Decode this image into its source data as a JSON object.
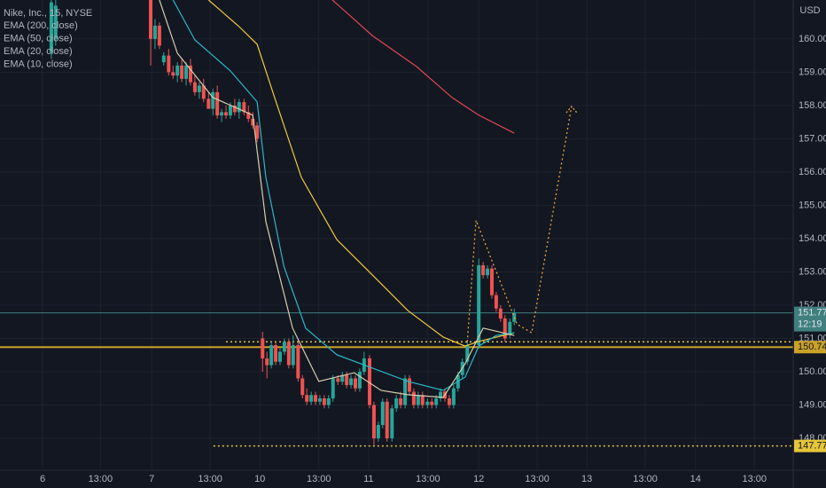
{
  "chart_data": {
    "type": "candlestick",
    "title": "Nike, Inc., 15, NYSE",
    "currency": "USD",
    "countdown": "12:19",
    "up_color": "#26a69a",
    "down_color": "#ef5350",
    "grid": true,
    "xlim": [
      -0.78,
      13.75
    ],
    "xticks": [
      {
        "value": 0,
        "label": "6"
      },
      {
        "value": 1.06,
        "label": "13:00"
      },
      {
        "value": 2.0,
        "label": "7"
      },
      {
        "value": 3.07,
        "label": "13:00"
      },
      {
        "value": 3.98,
        "label": "10"
      },
      {
        "value": 5.06,
        "label": "13:00"
      },
      {
        "value": 5.97,
        "label": "11"
      },
      {
        "value": 7.06,
        "label": "13:00"
      },
      {
        "value": 7.99,
        "label": "12"
      },
      {
        "value": 9.06,
        "label": "13:00"
      },
      {
        "value": 9.97,
        "label": "13"
      },
      {
        "value": 11.04,
        "label": "13:00"
      },
      {
        "value": 11.96,
        "label": "14"
      },
      {
        "value": 13.04,
        "label": "13:00"
      }
    ],
    "ylim": [
      147.04,
      161.17
    ],
    "yticks": [
      {
        "value": 148,
        "label": "148.00"
      },
      {
        "value": 149,
        "label": "149.00"
      },
      {
        "value": 150,
        "label": "150.00"
      },
      {
        "value": 151,
        "label": "151.00"
      },
      {
        "value": 152,
        "label": "152.00"
      },
      {
        "value": 153,
        "label": "153.00"
      },
      {
        "value": 154,
        "label": "154.00"
      },
      {
        "value": 155,
        "label": "155.00"
      },
      {
        "value": 156,
        "label": "156.00"
      },
      {
        "value": 157,
        "label": "157.00"
      },
      {
        "value": 158,
        "label": "158.00"
      },
      {
        "value": 159,
        "label": "159.00"
      },
      {
        "value": 160,
        "label": "160.00"
      }
    ],
    "candles": {
      "x": [
        0.16,
        0.24,
        1.98,
        2.06,
        2.14,
        2.22,
        2.31,
        2.39,
        2.47,
        2.55,
        2.63,
        2.71,
        2.79,
        2.87,
        2.95,
        3.04,
        3.12,
        3.2,
        3.28,
        3.36,
        3.44,
        3.52,
        3.6,
        3.69,
        3.77,
        3.85,
        3.93,
        4.03,
        4.11,
        4.19,
        4.27,
        4.35,
        4.43,
        4.51,
        4.59,
        4.68,
        4.76,
        4.84,
        4.92,
        5.0,
        5.08,
        5.16,
        5.24,
        5.32,
        5.41,
        5.49,
        5.57,
        5.65,
        5.73,
        5.81,
        5.89,
        5.99,
        6.07,
        6.15,
        6.23,
        6.31,
        6.4,
        6.48,
        6.56,
        6.64,
        6.72,
        6.8,
        6.88,
        6.96,
        7.05,
        7.13,
        7.21,
        7.29,
        7.37,
        7.45,
        7.53,
        7.61,
        7.69,
        7.78,
        7.99,
        8.07,
        8.15,
        8.23,
        8.31,
        8.39,
        8.47,
        8.56,
        8.64
      ],
      "open": [
        159.6,
        160.0,
        161.2,
        160.0,
        160.4,
        159.3,
        159.5,
        159.0,
        158.9,
        159.2,
        158.8,
        159.2,
        158.7,
        158.4,
        158.6,
        158.2,
        157.9,
        158.4,
        157.7,
        157.8,
        157.7,
        158.0,
        157.8,
        158.1,
        157.8,
        157.6,
        157.4,
        151.0,
        150.4,
        150.2,
        150.8,
        150.3,
        150.6,
        150.9,
        150.2,
        150.8,
        149.8,
        149.3,
        149.1,
        149.3,
        149.1,
        149.2,
        149.0,
        149.2,
        149.8,
        149.7,
        149.9,
        149.6,
        149.8,
        149.5,
        150.0,
        150.4,
        149.0,
        148.0,
        148.4,
        149.1,
        148.0,
        148.9,
        149.2,
        149.0,
        149.8,
        149.4,
        149.0,
        149.3,
        149.0,
        149.1,
        149.0,
        149.2,
        149.4,
        149.2,
        149.0,
        149.5,
        149.9,
        150.3,
        150.8,
        153.2,
        152.9,
        153.1,
        152.3,
        151.9,
        151.6,
        151.1,
        151.5
      ],
      "high": [
        161.2,
        161.2,
        161.2,
        160.6,
        160.5,
        159.6,
        159.7,
        159.2,
        159.3,
        159.4,
        159.3,
        159.4,
        158.9,
        158.7,
        158.8,
        158.4,
        158.5,
        158.6,
        157.9,
        158.0,
        158.1,
        158.2,
        158.2,
        158.2,
        158.0,
        157.8,
        157.5,
        151.2,
        150.6,
        150.9,
        150.9,
        150.7,
        151.0,
        151.0,
        151.1,
        150.9,
        149.9,
        149.5,
        149.4,
        149.4,
        149.3,
        149.3,
        149.3,
        149.9,
        149.9,
        150.0,
        150.0,
        149.9,
        149.9,
        150.1,
        150.6,
        150.5,
        149.1,
        148.5,
        149.2,
        149.2,
        149.0,
        149.3,
        149.4,
        149.9,
        149.9,
        149.5,
        149.4,
        149.4,
        149.2,
        149.2,
        149.3,
        149.5,
        149.5,
        149.3,
        149.6,
        150.0,
        150.4,
        150.9,
        153.4,
        153.3,
        153.2,
        153.2,
        152.4,
        152.0,
        151.7,
        151.6,
        151.9
      ],
      "low": [
        159.4,
        159.8,
        159.2,
        159.7,
        159.7,
        159.2,
        158.9,
        158.8,
        158.7,
        158.7,
        158.6,
        158.6,
        158.3,
        158.2,
        158.1,
        158.0,
        157.7,
        157.6,
        157.5,
        157.6,
        157.6,
        157.7,
        157.6,
        157.7,
        157.5,
        157.3,
        156.9,
        150.0,
        149.8,
        150.1,
        150.2,
        150.2,
        150.5,
        150.1,
        150.1,
        149.7,
        149.2,
        149.0,
        149.0,
        149.0,
        149.0,
        148.9,
        148.9,
        149.1,
        149.6,
        149.6,
        149.5,
        149.5,
        149.4,
        149.4,
        149.9,
        148.9,
        147.8,
        147.9,
        148.3,
        147.9,
        147.9,
        148.8,
        148.9,
        148.9,
        149.3,
        148.9,
        148.9,
        148.9,
        148.9,
        148.9,
        148.9,
        149.1,
        149.1,
        148.9,
        148.9,
        149.4,
        149.8,
        150.2,
        150.7,
        152.8,
        152.8,
        152.2,
        151.8,
        151.5,
        150.9,
        151.0,
        151.4
      ],
      "close": [
        161.1,
        161.0,
        160.0,
        160.4,
        159.8,
        159.5,
        159.0,
        158.9,
        159.2,
        158.8,
        159.2,
        158.7,
        158.4,
        158.6,
        158.2,
        157.9,
        158.4,
        157.7,
        157.8,
        157.7,
        158.0,
        157.8,
        158.1,
        157.8,
        157.6,
        157.4,
        157.0,
        150.4,
        150.2,
        150.8,
        150.3,
        150.6,
        150.9,
        150.2,
        150.8,
        149.8,
        149.3,
        149.1,
        149.3,
        149.1,
        149.2,
        149.0,
        149.2,
        149.8,
        149.7,
        149.9,
        149.6,
        149.8,
        149.5,
        150.0,
        150.4,
        149.0,
        148.0,
        148.4,
        149.1,
        148.0,
        148.9,
        149.2,
        149.0,
        149.8,
        149.4,
        149.0,
        149.3,
        149.0,
        149.1,
        149.0,
        149.2,
        149.4,
        149.2,
        149.0,
        149.5,
        149.9,
        150.3,
        150.8,
        153.2,
        152.9,
        153.1,
        152.3,
        151.9,
        151.6,
        151.0,
        151.5,
        151.77
      ]
    },
    "series": [
      {
        "name": "EMA (200, close)",
        "color": "#e04850",
        "x": [
          5.31,
          6.04,
          6.85,
          7.5,
          7.99,
          8.64
        ],
        "values": [
          161.17,
          160.1,
          159.17,
          158.24,
          157.71,
          157.17
        ]
      },
      {
        "name": "EMA (50, close)",
        "color": "#f0c93a",
        "x": [
          3.04,
          3.6,
          3.93,
          4.25,
          4.74,
          5.39,
          6.04,
          6.69,
          7.34,
          7.74,
          7.99,
          8.64
        ],
        "values": [
          161.17,
          160.37,
          159.84,
          158.24,
          155.84,
          153.97,
          152.91,
          151.84,
          151.04,
          150.77,
          150.91,
          151.17
        ]
      },
      {
        "name": "EMA (20, close)",
        "color": "#2ab8c8",
        "x": [
          2.39,
          2.79,
          3.44,
          3.93,
          4.09,
          4.42,
          4.82,
          5.39,
          6.04,
          6.69,
          7.34,
          7.74,
          7.99,
          8.31,
          8.64
        ],
        "values": [
          161.17,
          159.97,
          159.04,
          158.11,
          155.84,
          153.17,
          151.31,
          150.51,
          150.11,
          149.71,
          149.44,
          149.84,
          150.77,
          151.09,
          151.17
        ]
      },
      {
        "name": "EMA (10, close)",
        "color": "#d8cfae",
        "x": [
          2.14,
          2.47,
          3.12,
          3.85,
          4.09,
          4.58,
          5.06,
          5.71,
          6.2,
          6.69,
          7.34,
          7.74,
          8.07,
          8.64
        ],
        "values": [
          161.17,
          159.57,
          158.24,
          157.71,
          154.51,
          151.31,
          149.71,
          149.97,
          149.44,
          149.31,
          149.23,
          150.24,
          151.31,
          151.09
        ]
      }
    ],
    "last_price": 151.77,
    "last_price_color": "#3f7f7e",
    "levels": [
      {
        "value": 150.74,
        "color": "#c9a227",
        "style": "solid",
        "from": -0.78,
        "tag": true
      },
      {
        "value": 150.9,
        "color": "#e6c63a",
        "style": "dotted",
        "from": 3.36,
        "tag": false
      },
      {
        "value": 147.77,
        "color": "#e6c63a",
        "style": "dotted",
        "from": 3.13,
        "tag": true
      }
    ],
    "projection": {
      "color": "#e8a33a",
      "x": [
        7.78,
        7.94,
        8.69,
        8.96,
        9.69
      ],
      "values": [
        150.9,
        154.55,
        151.43,
        151.17,
        157.97
      ]
    }
  }
}
